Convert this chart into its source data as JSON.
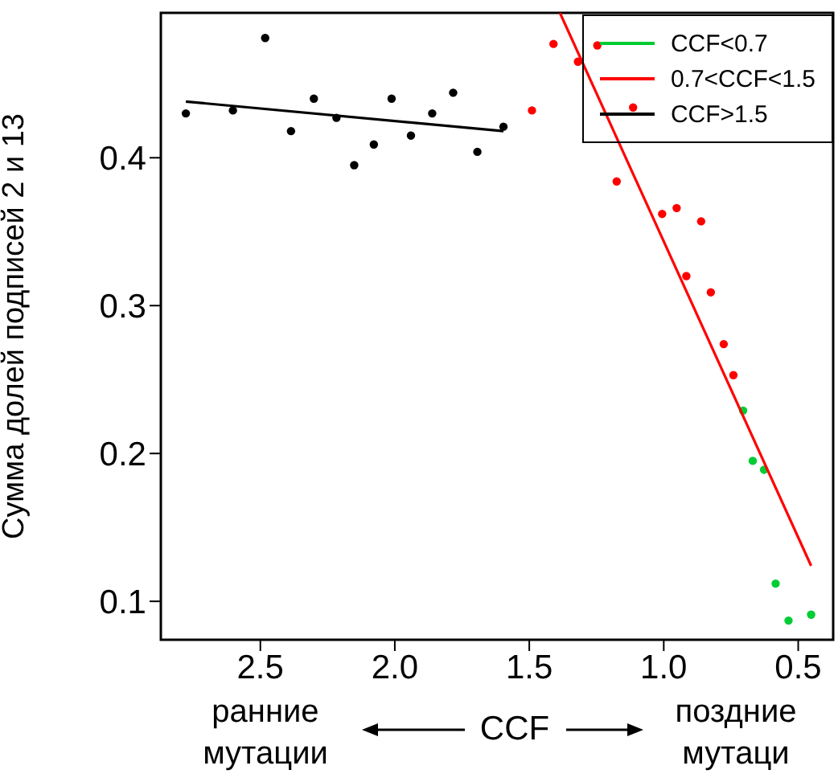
{
  "chart_data": {
    "type": "scatter",
    "xlabel": "CCF",
    "ylabel": "Сумма долей подписей 2 и 13",
    "xlim": [
      2.87,
      0.37
    ],
    "ylim": [
      0.074,
      0.498
    ],
    "xticks": [
      2.5,
      {
        "value": 2,
        "label": "2.0"
      },
      1.5,
      {
        "value": 1,
        "label": "1.0"
      },
      0.5
    ],
    "yticks": [
      0.1,
      0.2,
      0.3,
      0.4
    ],
    "legend": "top right",
    "annotations": [
      "ранние мутации",
      "поздние мутаци"
    ],
    "series": [
      {
        "name": "CCF<0.7",
        "color": "#00cc33",
        "marker": "circle",
        "x": [
          0.705,
          0.669,
          0.627,
          0.584,
          0.536,
          0.452
        ],
        "values": [
          0.229,
          0.195,
          0.189,
          0.112,
          0.087,
          0.091
        ]
      },
      {
        "name": "0.7<CCF<1.5",
        "color": "#ff0000",
        "marker": "circle",
        "x": [
          1.49,
          1.41,
          1.319,
          1.247,
          1.114,
          1.175,
          1.006,
          0.952,
          0.861,
          0.916,
          0.825,
          0.777,
          0.741
        ],
        "values": [
          0.432,
          0.477,
          0.465,
          0.476,
          0.434,
          0.384,
          0.362,
          0.366,
          0.357,
          0.32,
          0.309,
          0.274,
          0.253
        ]
      },
      {
        "name": "CCF>1.5",
        "color": "#000000",
        "marker": "circle",
        "x": [
          2.777,
          2.602,
          2.482,
          2.386,
          2.301,
          2.217,
          2.151,
          2.078,
          2.012,
          1.94,
          1.861,
          1.783,
          1.693,
          1.596
        ],
        "values": [
          0.43,
          0.432,
          0.481,
          0.418,
          0.44,
          0.427,
          0.395,
          0.409,
          0.44,
          0.415,
          0.43,
          0.444,
          0.404,
          0.421
        ]
      },
      {
        "color": "#ff0000",
        "type": "line",
        "marker": "none",
        "x": [
          1.386,
          0.452
        ],
        "values": [
          0.498,
          0.124
        ]
      },
      {
        "color": "#000000",
        "type": "line",
        "marker": "none",
        "x": [
          2.777,
          1.596
        ],
        "values": [
          0.438,
          0.418
        ]
      }
    ]
  }
}
